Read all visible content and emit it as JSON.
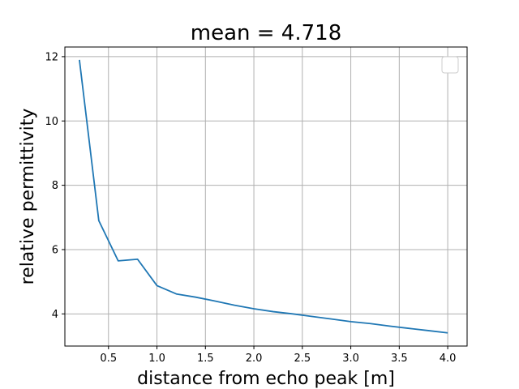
{
  "chart_data": {
    "type": "line",
    "title": "mean = 4.718",
    "xlabel": "distance from echo peak [m]",
    "ylabel": "relative permittivity",
    "xlim": [
      0.05,
      4.2
    ],
    "ylim": [
      3.0,
      12.3
    ],
    "xticks": [
      0.5,
      1.0,
      1.5,
      2.0,
      2.5,
      3.0,
      3.5,
      4.0
    ],
    "xtick_labels": [
      "0.5",
      "1.0",
      "1.5",
      "2.0",
      "2.5",
      "3.0",
      "3.5",
      "4.0"
    ],
    "yticks": [
      4,
      6,
      8,
      10,
      12
    ],
    "ytick_labels": [
      "4",
      "6",
      "8",
      "10",
      "12"
    ],
    "grid": true,
    "legend": {
      "placement": "upper-right",
      "entries": []
    },
    "series": [
      {
        "color": "#1f77b4",
        "x": [
          0.2,
          0.4,
          0.6,
          0.8,
          1.0,
          1.2,
          1.4,
          1.6,
          1.8,
          2.0,
          2.2,
          2.4,
          2.6,
          2.8,
          3.0,
          3.2,
          3.4,
          3.6,
          3.8,
          4.0
        ],
        "y": [
          11.9,
          6.9,
          5.65,
          5.7,
          4.88,
          4.62,
          4.52,
          4.4,
          4.27,
          4.16,
          4.07,
          4.0,
          3.92,
          3.84,
          3.76,
          3.7,
          3.62,
          3.55,
          3.48,
          3.41
        ]
      }
    ]
  }
}
